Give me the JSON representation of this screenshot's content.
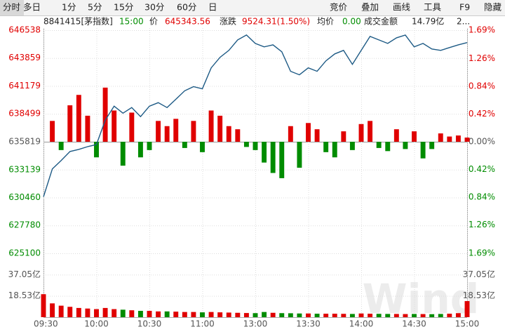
{
  "toolbar": {
    "left": [
      "分时",
      "多日",
      "1分",
      "5分",
      "15分",
      "30分",
      "60分",
      "日"
    ],
    "right": [
      "竞价",
      "叠加",
      "画线",
      "工具",
      "F9",
      "隐藏"
    ]
  },
  "header": {
    "code": "8841415[茅指数]",
    "time": "15:00",
    "price_label": "价",
    "price": "645343.56",
    "change_label": "涨跌",
    "change": "9524.31(1.50%)",
    "avg_label": "均价",
    "avg": "0.00",
    "amount_label": "成交金额",
    "amount": "14.79亿",
    "more": "2..."
  },
  "watermark": "Wind",
  "chart_data": {
    "type": "line",
    "x": [
      "09:30",
      "09:35",
      "09:40",
      "09:45",
      "09:50",
      "09:55",
      "10:00",
      "10:05",
      "10:10",
      "10:15",
      "10:20",
      "10:25",
      "10:30",
      "10:35",
      "10:40",
      "10:45",
      "10:50",
      "10:55",
      "11:00",
      "11:05",
      "11:10",
      "11:15",
      "11:20",
      "11:25",
      "11:30",
      "13:05",
      "13:10",
      "13:15",
      "13:20",
      "13:25",
      "13:30",
      "13:35",
      "13:40",
      "13:45",
      "13:50",
      "13:55",
      "14:00",
      "14:05",
      "14:10",
      "14:15",
      "14:20",
      "14:25",
      "14:30",
      "14:35",
      "14:40",
      "14:45",
      "14:50",
      "14:55",
      "15:00"
    ],
    "xticks": [
      "09:30",
      "10:00",
      "10:30",
      "11:00",
      "13:00",
      "13:30",
      "14:00",
      "14:30",
      "15:00"
    ],
    "ylim": [
      625100,
      646538
    ],
    "yticks": [
      646538,
      643859,
      641179,
      638499,
      635819,
      633139,
      630460,
      627780,
      625100
    ],
    "y2lim": [
      -1.69,
      1.69
    ],
    "y2ticks": [
      {
        "value": 1.69,
        "label": "1.69%"
      },
      {
        "value": 1.26,
        "label": "1.26%"
      },
      {
        "value": 0.84,
        "label": "0.84%"
      },
      {
        "value": 0.42,
        "label": "0.42%"
      },
      {
        "value": 0,
        "label": "0.00%"
      },
      {
        "value": -0.42,
        "label": "0.42%"
      },
      {
        "value": -0.84,
        "label": "0.84%"
      },
      {
        "value": -1.26,
        "label": "1.26%"
      },
      {
        "value": -1.69,
        "label": "1.69%"
      }
    ],
    "up_color": "#e00000",
    "down_color": "#008c00",
    "flat_color": "#555555",
    "series": [
      {
        "type": "line",
        "color": "#1d5a85",
        "values": [
          630526,
          633206,
          634010,
          634881,
          635082,
          635350,
          635551,
          637896,
          639236,
          638566,
          639102,
          638231,
          639236,
          639571,
          639102,
          639906,
          640710,
          641112,
          640911,
          642921,
          643926,
          644596,
          645601,
          646070,
          645266,
          644931,
          645132,
          644462,
          642586,
          642251,
          642921,
          642586,
          643591,
          644261,
          644596,
          643256,
          644596,
          645936,
          645601,
          645266,
          645802,
          646070,
          644931,
          645266,
          644730,
          644596,
          644864,
          645132,
          645343.56
        ]
      },
      {
        "type": "bar",
        "values": [
          0,
          2000,
          -800,
          3500,
          4500,
          2500,
          -1500,
          5200,
          3000,
          -2300,
          2800,
          -1500,
          -800,
          2000,
          1500,
          2200,
          -600,
          2000,
          -1000,
          3000,
          2500,
          1500,
          1200,
          -500,
          -800,
          -2000,
          -3000,
          -3500,
          1500,
          -2500,
          1800,
          1200,
          -1000,
          -1500,
          1000,
          -800,
          1700,
          2000,
          -600,
          -900,
          1200,
          -700,
          1000,
          -1600,
          -700,
          800,
          500,
          600,
          400
        ]
      }
    ],
    "volume": {
      "ylim": [
        0,
        55.58
      ],
      "yticks": [
        {
          "value": 37.05,
          "label": "37.05亿"
        },
        {
          "value": 18.53,
          "label": "18.53亿"
        }
      ],
      "values": [
        20,
        12,
        10,
        9,
        8,
        7.5,
        7,
        8,
        7,
        6.5,
        6,
        5.5,
        5.5,
        5,
        5,
        4.8,
        4.5,
        4.5,
        4.2,
        4.5,
        4.2,
        4,
        3.8,
        3.6,
        3.5,
        4.5,
        3.8,
        3.5,
        3.4,
        3.2,
        3.2,
        3,
        3,
        3,
        2.9,
        2.8,
        3.2,
        3,
        2.9,
        2.8,
        2.8,
        2.7,
        2.8,
        2.7,
        2.6,
        2.8,
        3,
        3.5,
        14
      ]
    }
  }
}
